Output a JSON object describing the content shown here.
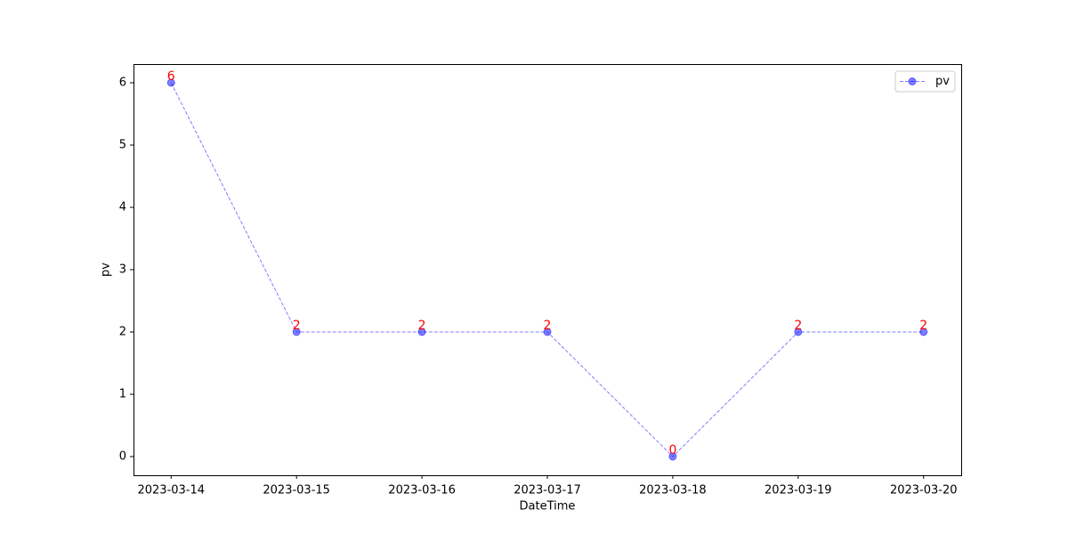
{
  "chart_data": {
    "type": "line",
    "x_label": "DateTime",
    "y_label": "pv",
    "categories": [
      "2023-03-14",
      "2023-03-15",
      "2023-03-16",
      "2023-03-17",
      "2023-03-18",
      "2023-03-19",
      "2023-03-20"
    ],
    "series": [
      {
        "name": "pv",
        "color": "#0000ff",
        "values": [
          6,
          2,
          2,
          2,
          0,
          2,
          2
        ]
      }
    ],
    "label_color": "#ff0000",
    "ylim": [
      -0.3,
      6.3
    ],
    "yticks": [
      0,
      1,
      2,
      3,
      4,
      5,
      6
    ],
    "grid": false,
    "legend": "upper right"
  }
}
